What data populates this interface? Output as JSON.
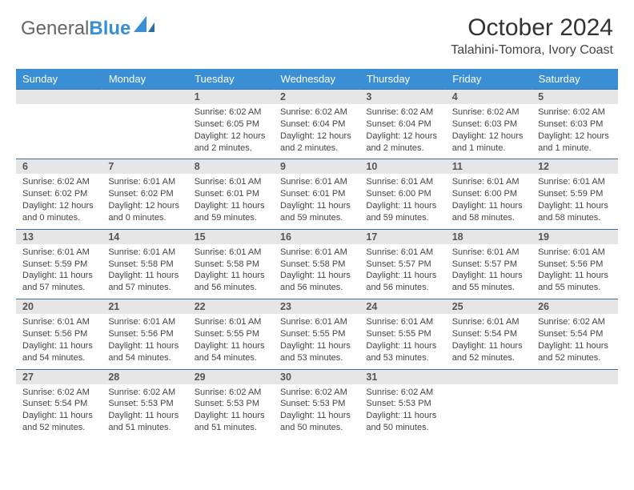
{
  "brand": {
    "part1": "General",
    "part2": "Blue"
  },
  "title": "October 2024",
  "location": "Talahini-Tomora, Ivory Coast",
  "colors": {
    "header_bg": "#3a8fd4",
    "header_text": "#ffffff",
    "daynum_bg": "#e6e6e6",
    "week_divider": "#2d5f8f",
    "body_text": "#444444"
  },
  "weekdays": [
    "Sunday",
    "Monday",
    "Tuesday",
    "Wednesday",
    "Thursday",
    "Friday",
    "Saturday"
  ],
  "weeks": [
    [
      {
        "n": "",
        "lines": []
      },
      {
        "n": "",
        "lines": []
      },
      {
        "n": "1",
        "lines": [
          "Sunrise: 6:02 AM",
          "Sunset: 6:05 PM",
          "Daylight: 12 hours and 2 minutes."
        ]
      },
      {
        "n": "2",
        "lines": [
          "Sunrise: 6:02 AM",
          "Sunset: 6:04 PM",
          "Daylight: 12 hours and 2 minutes."
        ]
      },
      {
        "n": "3",
        "lines": [
          "Sunrise: 6:02 AM",
          "Sunset: 6:04 PM",
          "Daylight: 12 hours and 2 minutes."
        ]
      },
      {
        "n": "4",
        "lines": [
          "Sunrise: 6:02 AM",
          "Sunset: 6:03 PM",
          "Daylight: 12 hours and 1 minute."
        ]
      },
      {
        "n": "5",
        "lines": [
          "Sunrise: 6:02 AM",
          "Sunset: 6:03 PM",
          "Daylight: 12 hours and 1 minute."
        ]
      }
    ],
    [
      {
        "n": "6",
        "lines": [
          "Sunrise: 6:02 AM",
          "Sunset: 6:02 PM",
          "Daylight: 12 hours and 0 minutes."
        ]
      },
      {
        "n": "7",
        "lines": [
          "Sunrise: 6:01 AM",
          "Sunset: 6:02 PM",
          "Daylight: 12 hours and 0 minutes."
        ]
      },
      {
        "n": "8",
        "lines": [
          "Sunrise: 6:01 AM",
          "Sunset: 6:01 PM",
          "Daylight: 11 hours and 59 minutes."
        ]
      },
      {
        "n": "9",
        "lines": [
          "Sunrise: 6:01 AM",
          "Sunset: 6:01 PM",
          "Daylight: 11 hours and 59 minutes."
        ]
      },
      {
        "n": "10",
        "lines": [
          "Sunrise: 6:01 AM",
          "Sunset: 6:00 PM",
          "Daylight: 11 hours and 59 minutes."
        ]
      },
      {
        "n": "11",
        "lines": [
          "Sunrise: 6:01 AM",
          "Sunset: 6:00 PM",
          "Daylight: 11 hours and 58 minutes."
        ]
      },
      {
        "n": "12",
        "lines": [
          "Sunrise: 6:01 AM",
          "Sunset: 5:59 PM",
          "Daylight: 11 hours and 58 minutes."
        ]
      }
    ],
    [
      {
        "n": "13",
        "lines": [
          "Sunrise: 6:01 AM",
          "Sunset: 5:59 PM",
          "Daylight: 11 hours and 57 minutes."
        ]
      },
      {
        "n": "14",
        "lines": [
          "Sunrise: 6:01 AM",
          "Sunset: 5:58 PM",
          "Daylight: 11 hours and 57 minutes."
        ]
      },
      {
        "n": "15",
        "lines": [
          "Sunrise: 6:01 AM",
          "Sunset: 5:58 PM",
          "Daylight: 11 hours and 56 minutes."
        ]
      },
      {
        "n": "16",
        "lines": [
          "Sunrise: 6:01 AM",
          "Sunset: 5:58 PM",
          "Daylight: 11 hours and 56 minutes."
        ]
      },
      {
        "n": "17",
        "lines": [
          "Sunrise: 6:01 AM",
          "Sunset: 5:57 PM",
          "Daylight: 11 hours and 56 minutes."
        ]
      },
      {
        "n": "18",
        "lines": [
          "Sunrise: 6:01 AM",
          "Sunset: 5:57 PM",
          "Daylight: 11 hours and 55 minutes."
        ]
      },
      {
        "n": "19",
        "lines": [
          "Sunrise: 6:01 AM",
          "Sunset: 5:56 PM",
          "Daylight: 11 hours and 55 minutes."
        ]
      }
    ],
    [
      {
        "n": "20",
        "lines": [
          "Sunrise: 6:01 AM",
          "Sunset: 5:56 PM",
          "Daylight: 11 hours and 54 minutes."
        ]
      },
      {
        "n": "21",
        "lines": [
          "Sunrise: 6:01 AM",
          "Sunset: 5:56 PM",
          "Daylight: 11 hours and 54 minutes."
        ]
      },
      {
        "n": "22",
        "lines": [
          "Sunrise: 6:01 AM",
          "Sunset: 5:55 PM",
          "Daylight: 11 hours and 54 minutes."
        ]
      },
      {
        "n": "23",
        "lines": [
          "Sunrise: 6:01 AM",
          "Sunset: 5:55 PM",
          "Daylight: 11 hours and 53 minutes."
        ]
      },
      {
        "n": "24",
        "lines": [
          "Sunrise: 6:01 AM",
          "Sunset: 5:55 PM",
          "Daylight: 11 hours and 53 minutes."
        ]
      },
      {
        "n": "25",
        "lines": [
          "Sunrise: 6:01 AM",
          "Sunset: 5:54 PM",
          "Daylight: 11 hours and 52 minutes."
        ]
      },
      {
        "n": "26",
        "lines": [
          "Sunrise: 6:02 AM",
          "Sunset: 5:54 PM",
          "Daylight: 11 hours and 52 minutes."
        ]
      }
    ],
    [
      {
        "n": "27",
        "lines": [
          "Sunrise: 6:02 AM",
          "Sunset: 5:54 PM",
          "Daylight: 11 hours and 52 minutes."
        ]
      },
      {
        "n": "28",
        "lines": [
          "Sunrise: 6:02 AM",
          "Sunset: 5:53 PM",
          "Daylight: 11 hours and 51 minutes."
        ]
      },
      {
        "n": "29",
        "lines": [
          "Sunrise: 6:02 AM",
          "Sunset: 5:53 PM",
          "Daylight: 11 hours and 51 minutes."
        ]
      },
      {
        "n": "30",
        "lines": [
          "Sunrise: 6:02 AM",
          "Sunset: 5:53 PM",
          "Daylight: 11 hours and 50 minutes."
        ]
      },
      {
        "n": "31",
        "lines": [
          "Sunrise: 6:02 AM",
          "Sunset: 5:53 PM",
          "Daylight: 11 hours and 50 minutes."
        ]
      },
      {
        "n": "",
        "lines": []
      },
      {
        "n": "",
        "lines": []
      }
    ]
  ]
}
